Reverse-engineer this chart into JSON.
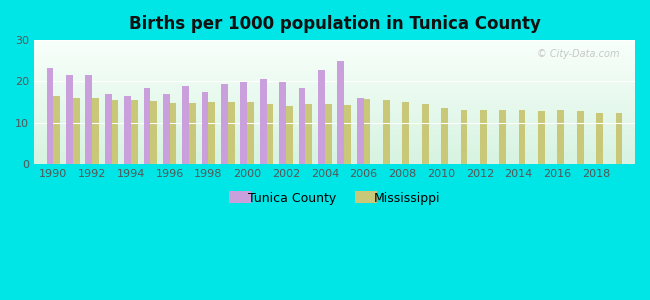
{
  "title": "Births per 1000 population in Tunica County",
  "tunica_years": [
    1990,
    1991,
    1992,
    1993,
    1994,
    1995,
    1996,
    1997,
    1998,
    1999,
    2000,
    2001,
    2002,
    2003,
    2004,
    2005,
    2006
  ],
  "tunica_values": [
    23.3,
    21.5,
    21.5,
    17.0,
    16.5,
    18.5,
    17.0,
    19.0,
    17.5,
    19.5,
    19.8,
    20.5,
    19.8,
    18.5,
    22.8,
    25.0,
    16.0
  ],
  "ms_years": [
    1990,
    1991,
    1992,
    1993,
    1994,
    1995,
    1996,
    1997,
    1998,
    1999,
    2000,
    2001,
    2002,
    2003,
    2004,
    2005,
    2006,
    2007,
    2008,
    2009,
    2010,
    2011,
    2012,
    2013,
    2014,
    2015,
    2016,
    2017,
    2018,
    2019
  ],
  "ms_values": [
    16.5,
    16.0,
    16.0,
    15.5,
    15.5,
    15.2,
    14.8,
    14.8,
    15.0,
    15.0,
    15.0,
    14.5,
    14.0,
    14.5,
    14.5,
    14.3,
    15.8,
    15.5,
    15.0,
    14.5,
    13.5,
    13.2,
    13.0,
    13.0,
    13.0,
    12.8,
    13.0,
    12.8,
    12.5,
    12.5
  ],
  "tunica_color": "#c9a0dc",
  "ms_color": "#c8c878",
  "bg_color": "#00e5e5",
  "ylim": [
    0,
    30
  ],
  "yticks": [
    0,
    10,
    20,
    30
  ],
  "bar_width": 0.35,
  "legend_tunica": "Tunica County",
  "legend_ms": "Mississippi",
  "xmin": 1989.0,
  "xmax": 2020.0
}
